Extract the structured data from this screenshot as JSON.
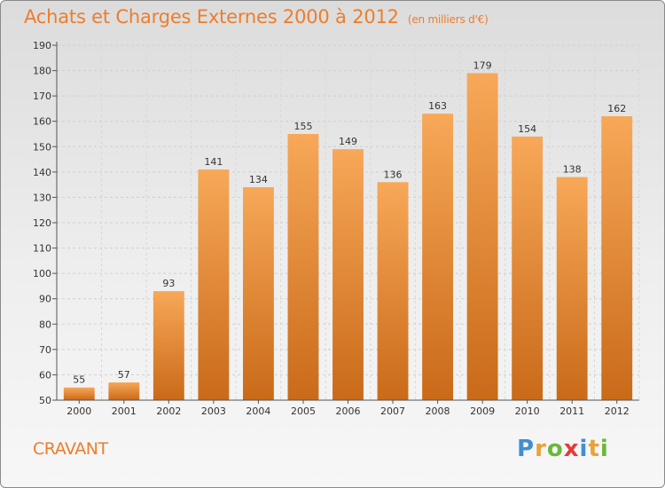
{
  "header": {
    "title": "Achats et Charges Externes 2000 à 2012",
    "subtitle": "(en milliers d'€)"
  },
  "footer": {
    "commune": "CRAVANT",
    "logo_letters": [
      "P",
      "r",
      "o",
      "x",
      "i",
      "t",
      "i"
    ],
    "logo_colors": [
      "#3f8fd2",
      "#e8a23c",
      "#69b83b",
      "#e23c3c",
      "#3f8fd2",
      "#e8a23c",
      "#69b83b"
    ]
  },
  "colors": {
    "bar_top": "#f7a858",
    "bar_bottom": "#c96a19",
    "accent": "#ee7d2b"
  },
  "chart_data": {
    "type": "bar",
    "title": "Achats et Charges Externes 2000 à 2012",
    "subtitle": "(en milliers d'€)",
    "categories": [
      "2000",
      "2001",
      "2002",
      "2003",
      "2004",
      "2005",
      "2006",
      "2007",
      "2008",
      "2009",
      "2010",
      "2011",
      "2012"
    ],
    "values": [
      55,
      57,
      93,
      141,
      134,
      155,
      149,
      136,
      163,
      179,
      154,
      138,
      162
    ],
    "ylim": [
      50,
      190
    ],
    "yticks": [
      50,
      60,
      70,
      80,
      90,
      100,
      110,
      120,
      130,
      140,
      150,
      160,
      170,
      180,
      190
    ],
    "grid": true,
    "xlabel": "",
    "ylabel": ""
  }
}
